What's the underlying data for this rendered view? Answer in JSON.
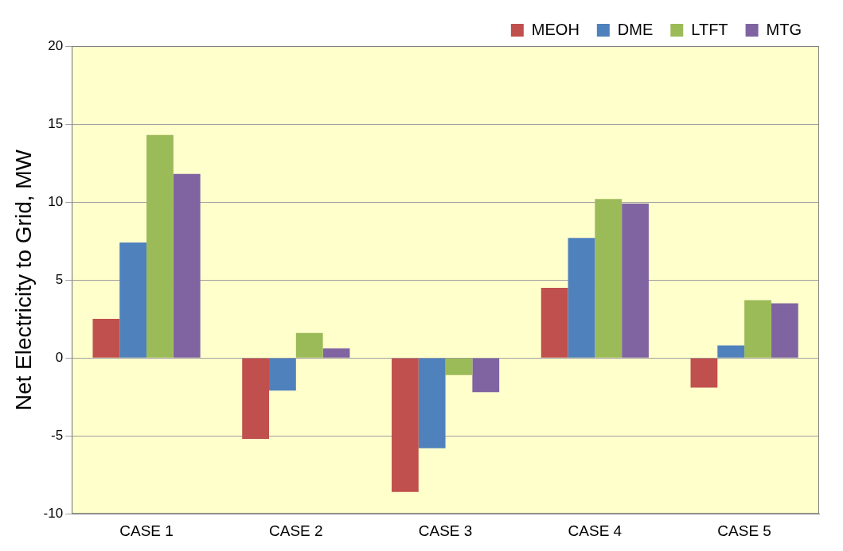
{
  "chart_data": {
    "type": "bar",
    "y_label": "Net Electricity to Grid, MW",
    "categories": [
      "CASE 1",
      "CASE 2",
      "CASE 3",
      "CASE 4",
      "CASE 5"
    ],
    "series": [
      {
        "name": "MEOH",
        "color": "#c0504d",
        "values": [
          2.5,
          -5.2,
          -8.6,
          4.5,
          -1.9
        ]
      },
      {
        "name": "DME",
        "color": "#4f81bd",
        "values": [
          7.4,
          -2.1,
          -5.8,
          7.7,
          0.8
        ]
      },
      {
        "name": "LTFT",
        "color": "#9bbb59",
        "values": [
          14.3,
          1.6,
          -1.1,
          10.2,
          3.7
        ]
      },
      {
        "name": "MTG",
        "color": "#8064a2",
        "values": [
          11.8,
          0.6,
          -2.2,
          9.9,
          3.5
        ]
      }
    ],
    "ylim": [
      -10,
      20
    ],
    "yticks": [
      -10,
      -5,
      0,
      5,
      10,
      15,
      20
    ],
    "grid": true,
    "legend": "top right"
  }
}
